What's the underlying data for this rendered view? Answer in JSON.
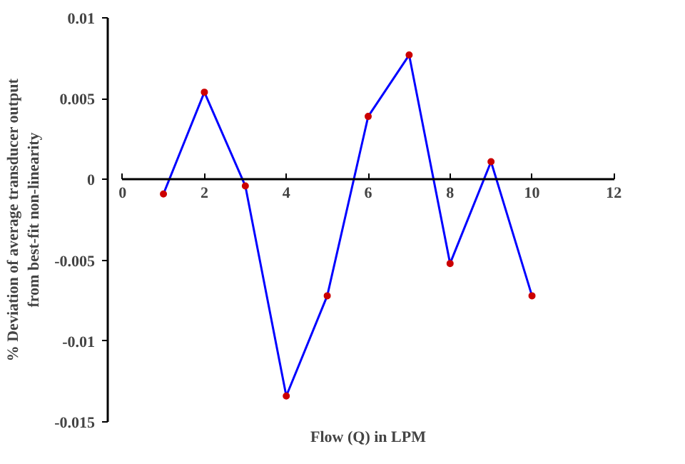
{
  "chart_data": {
    "type": "line",
    "xlabel": "Flow (Q) in LPM",
    "ylabel": "% Deviation of average transducer output\nfrom best-fit non-linearity",
    "x": [
      1,
      2,
      3,
      4,
      5,
      6,
      7,
      8,
      9,
      10
    ],
    "series": [
      {
        "color": "#0000ff",
        "values": [
          -0.0009,
          0.0054,
          -0.0004,
          -0.0134,
          -0.0072,
          0.0039,
          0.0077,
          -0.0052,
          0.0011,
          -0.0072
        ]
      },
      {
        "type": "scatter",
        "marker": "circle",
        "color": "#cc0000",
        "values": [
          -0.0009,
          0.0054,
          -0.0004,
          -0.0134,
          -0.0072,
          0.0039,
          0.0077,
          -0.0052,
          0.0011,
          -0.0072
        ]
      }
    ],
    "xlim": [
      0,
      12
    ],
    "xticks": [
      0,
      2,
      4,
      6,
      8,
      10,
      12
    ],
    "ylim": [
      -0.015,
      0.01
    ],
    "yticks": [
      -0.015,
      -0.01,
      -0.005,
      0,
      0.005,
      0.01
    ],
    "grid": false
  }
}
